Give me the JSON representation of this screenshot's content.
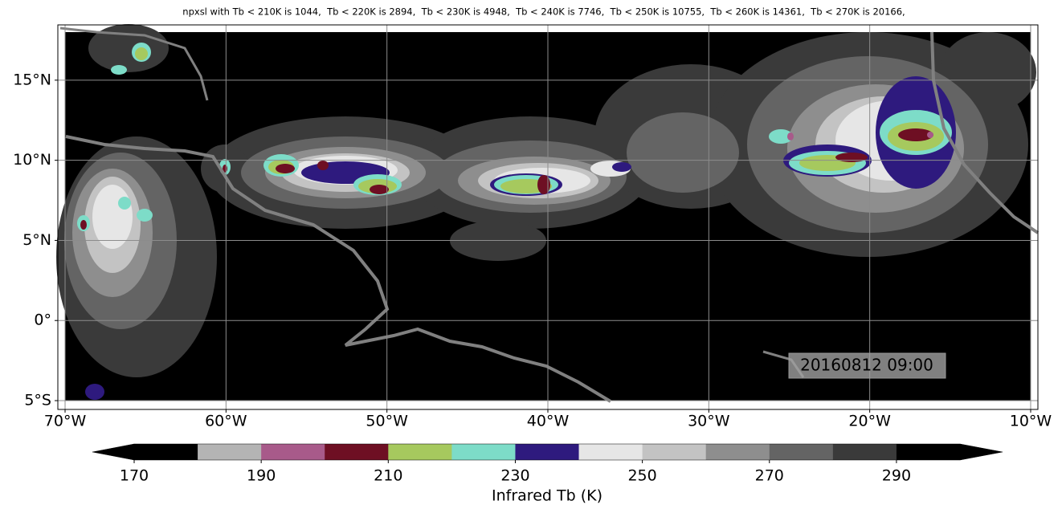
{
  "title": "npxsl with Tb < 210K is 1044,  Tb < 220K is 2894,  Tb < 230K is 4948,  Tb < 240K is 7746,  Tb < 250K is 10755,  Tb < 260K is 14361,  Tb < 270K is 20166,",
  "map": {
    "xlim": [
      -70.45,
      -9.55
    ],
    "ylim": [
      -5.55,
      18.45
    ],
    "data_extent": {
      "lon": [
        -70,
        -10
      ],
      "lat": [
        -5,
        18
      ]
    },
    "xticks": [
      {
        "value": -70,
        "label": "70°W"
      },
      {
        "value": -60,
        "label": "60°W"
      },
      {
        "value": -50,
        "label": "50°W"
      },
      {
        "value": -40,
        "label": "40°W"
      },
      {
        "value": -30,
        "label": "30°W"
      },
      {
        "value": -20,
        "label": "20°W"
      },
      {
        "value": -10,
        "label": "10°W"
      }
    ],
    "yticks": [
      {
        "value": -5,
        "label": "5°S"
      },
      {
        "value": 0,
        "label": "0°"
      },
      {
        "value": 5,
        "label": "5°N"
      },
      {
        "value": 10,
        "label": "10°N"
      },
      {
        "value": 15,
        "label": "15°N"
      }
    ],
    "grid": true
  },
  "annotation": "20160812 09:00",
  "colorbar": {
    "levels": [
      170,
      180,
      190,
      200,
      210,
      220,
      230,
      240,
      250,
      260,
      270,
      280,
      290,
      300
    ],
    "colors": [
      "#000000",
      "#b4b4b4",
      "#a85a8a",
      "#6e0f23",
      "#a6c95e",
      "#7ddcc8",
      "#2e1a7e",
      "#e6e6e6",
      "#c3c3c3",
      "#8e8e8e",
      "#646464",
      "#3a3a3a",
      "#000000"
    ],
    "extend": "both",
    "under_color": "#000000",
    "over_color": "#000000",
    "ticks": [
      170,
      190,
      210,
      230,
      250,
      270,
      290
    ],
    "label": "Infrared Tb (K)"
  }
}
